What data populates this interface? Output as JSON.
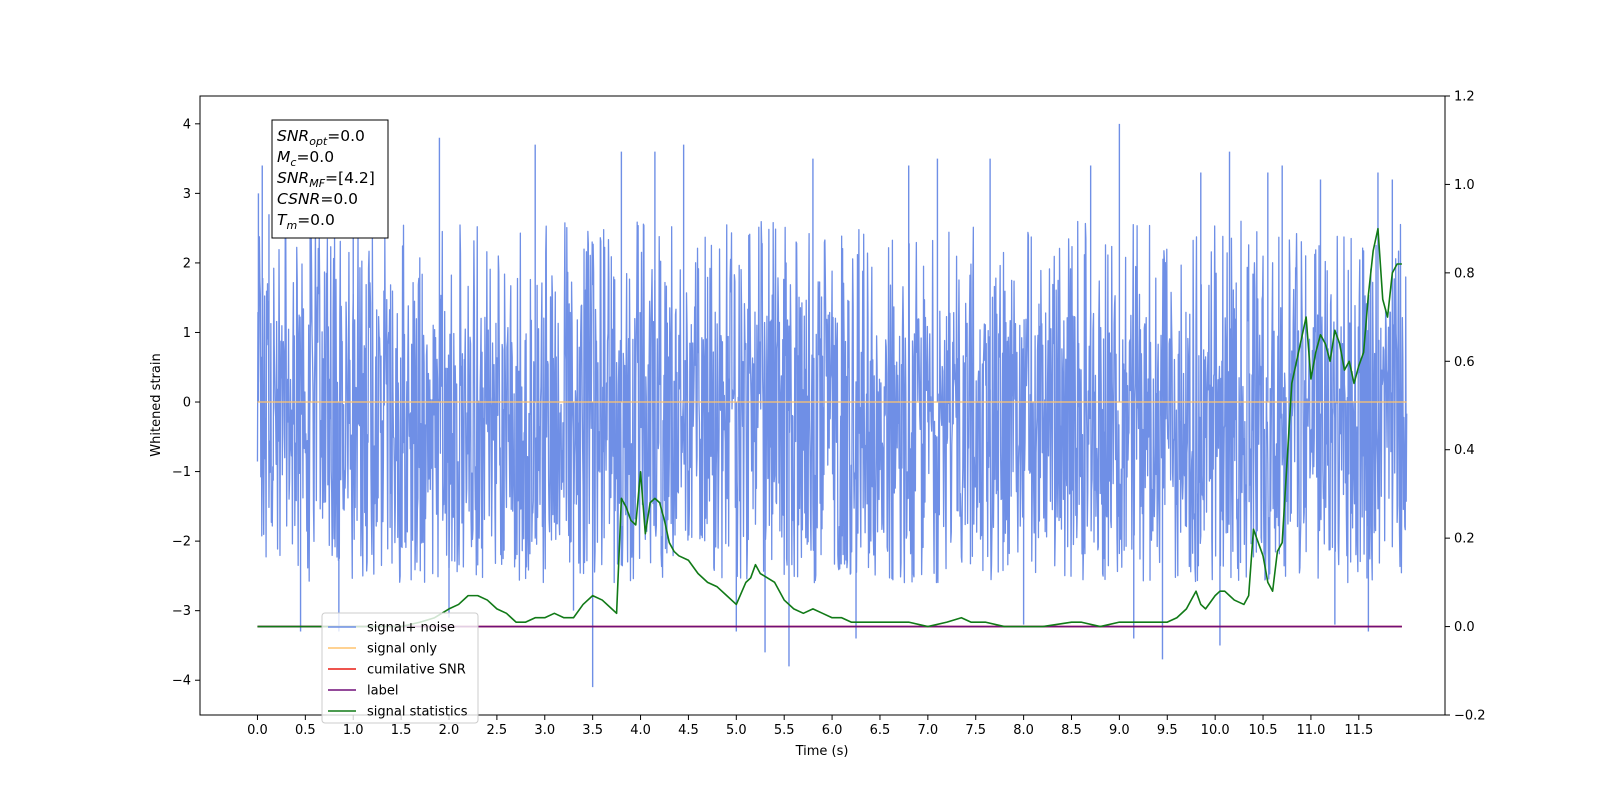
{
  "chart_data": {
    "type": "line",
    "title": "",
    "xlabel": "Time (s)",
    "ylabel": "Whitened strain",
    "y2label": "",
    "xlim": [
      -0.6,
      12.4
    ],
    "ylim": [
      -4.5,
      4.4
    ],
    "y2lim": [
      -0.2,
      1.2
    ],
    "x_ticks": [
      0.0,
      0.5,
      1.0,
      1.5,
      2.0,
      2.5,
      3.0,
      3.5,
      4.0,
      4.5,
      5.0,
      5.5,
      6.0,
      6.5,
      7.0,
      7.5,
      8.0,
      8.5,
      9.0,
      9.5,
      10.0,
      10.5,
      11.0,
      11.5
    ],
    "x_tick_labels": [
      "0.0",
      "0.5",
      "1.0",
      "1.5",
      "2.0",
      "2.5",
      "3.0",
      "3.5",
      "4.0",
      "4.5",
      "5.0",
      "5.5",
      "6.0",
      "6.5",
      "7.0",
      "7.5",
      "8.0",
      "8.5",
      "9.0",
      "9.5",
      "10.0",
      "10.5",
      "11.0",
      "11.5"
    ],
    "y_ticks": [
      -4,
      -3,
      -2,
      -1,
      0,
      1,
      2,
      3,
      4
    ],
    "y_tick_labels": [
      "−4",
      "−3",
      "−2",
      "−1",
      "0",
      "1",
      "2",
      "3",
      "4"
    ],
    "y2_ticks": [
      -0.2,
      0.0,
      0.2,
      0.4,
      0.6,
      0.8,
      1.0,
      1.2
    ],
    "y2_tick_labels": [
      "−0.2",
      "0.0",
      "0.2",
      "0.4",
      "0.6",
      "0.8",
      "1.0",
      "1.2"
    ],
    "grid": false,
    "legend_position": "lower-left",
    "annotation": [
      {
        "base": "SNR",
        "sub": "opt",
        "value": "=0.0"
      },
      {
        "base": "M",
        "sub": "c",
        "value": "=0.0"
      },
      {
        "base": "SNR",
        "sub": "MF",
        "value": "=[4.2]"
      },
      {
        "base": "CSNR",
        "sub": "",
        "value": "=0.0"
      },
      {
        "base": "T",
        "sub": "m",
        "value": "=0.0"
      }
    ],
    "series": [
      {
        "name": "signal+ noise",
        "color": "#6f8fe6",
        "axis": "left",
        "style": "noise",
        "x_range": [
          0.0,
          12.0
        ],
        "typical_band": [
          -1.8,
          1.3
        ],
        "envelope": [
          -2.6,
          2.6
        ],
        "spikes": [
          {
            "x": 0.01,
            "y": 3.0
          },
          {
            "x": 0.05,
            "y": 3.4
          },
          {
            "x": 0.12,
            "y": 2.7
          },
          {
            "x": 0.45,
            "y": -3.3
          },
          {
            "x": 0.55,
            "y": 3.2
          },
          {
            "x": 0.85,
            "y": -3.3
          },
          {
            "x": 1.0,
            "y": 3.2
          },
          {
            "x": 1.9,
            "y": 3.8
          },
          {
            "x": 2.0,
            "y": -3.1
          },
          {
            "x": 2.9,
            "y": 3.7
          },
          {
            "x": 3.3,
            "y": -3.0
          },
          {
            "x": 3.5,
            "y": -4.1
          },
          {
            "x": 3.8,
            "y": 3.6
          },
          {
            "x": 4.15,
            "y": 3.6
          },
          {
            "x": 4.45,
            "y": 3.7
          },
          {
            "x": 5.0,
            "y": -3.3
          },
          {
            "x": 5.3,
            "y": -3.6
          },
          {
            "x": 5.55,
            "y": -3.8
          },
          {
            "x": 5.8,
            "y": 3.5
          },
          {
            "x": 6.25,
            "y": -3.4
          },
          {
            "x": 6.8,
            "y": 3.4
          },
          {
            "x": 7.1,
            "y": 3.5
          },
          {
            "x": 7.65,
            "y": 3.5
          },
          {
            "x": 8.0,
            "y": -3.2
          },
          {
            "x": 8.7,
            "y": 3.4
          },
          {
            "x": 9.0,
            "y": 4.0
          },
          {
            "x": 9.15,
            "y": -3.4
          },
          {
            "x": 9.45,
            "y": -3.7
          },
          {
            "x": 9.85,
            "y": 3.3
          },
          {
            "x": 10.05,
            "y": -3.5
          },
          {
            "x": 10.15,
            "y": 3.6
          },
          {
            "x": 10.55,
            "y": 3.3
          },
          {
            "x": 10.7,
            "y": 3.4
          },
          {
            "x": 11.1,
            "y": 3.2
          },
          {
            "x": 11.25,
            "y": -3.2
          },
          {
            "x": 11.6,
            "y": -3.3
          },
          {
            "x": 11.7,
            "y": 3.3
          },
          {
            "x": 11.85,
            "y": 3.2
          }
        ]
      },
      {
        "name": "signal only",
        "color": "#ffc36e",
        "axis": "left",
        "x": [
          0.0,
          12.0
        ],
        "y": [
          0.0,
          0.0
        ]
      },
      {
        "name": "cumilative SNR",
        "color": "#e81b14",
        "axis": "right",
        "x": [
          0.0,
          11.95
        ],
        "y": [
          0.0,
          0.0
        ]
      },
      {
        "name": "label",
        "color": "#700f78",
        "axis": "right",
        "x": [
          0.0,
          11.95
        ],
        "y": [
          0.0,
          0.0
        ]
      },
      {
        "name": "signal statistics",
        "color": "#117a17",
        "axis": "right",
        "x": [
          0.0,
          0.5,
          1.0,
          1.5,
          1.7,
          1.85,
          2.0,
          2.1,
          2.2,
          2.3,
          2.4,
          2.5,
          2.6,
          2.7,
          2.8,
          2.9,
          3.0,
          3.1,
          3.2,
          3.3,
          3.4,
          3.5,
          3.6,
          3.7,
          3.75,
          3.8,
          3.85,
          3.9,
          3.95,
          4.0,
          4.05,
          4.1,
          4.15,
          4.2,
          4.25,
          4.3,
          4.35,
          4.4,
          4.5,
          4.6,
          4.7,
          4.8,
          4.9,
          5.0,
          5.1,
          5.15,
          5.2,
          5.25,
          5.4,
          5.5,
          5.6,
          5.7,
          5.8,
          5.9,
          6.0,
          6.1,
          6.2,
          6.4,
          6.6,
          6.8,
          7.0,
          7.2,
          7.35,
          7.45,
          7.6,
          7.8,
          8.0,
          8.2,
          8.5,
          8.6,
          8.8,
          9.0,
          9.2,
          9.4,
          9.5,
          9.6,
          9.7,
          9.75,
          9.8,
          9.85,
          9.9,
          10.0,
          10.05,
          10.1,
          10.15,
          10.2,
          10.3,
          10.35,
          10.4,
          10.45,
          10.5,
          10.55,
          10.6,
          10.65,
          10.7,
          10.8,
          10.85,
          10.9,
          10.95,
          11.0,
          11.05,
          11.1,
          11.15,
          11.2,
          11.25,
          11.3,
          11.35,
          11.4,
          11.45,
          11.5,
          11.55,
          11.6,
          11.65,
          11.7,
          11.75,
          11.8,
          11.85,
          11.9,
          11.95
        ],
        "y": [
          0.0,
          0.0,
          0.0,
          0.0,
          0.01,
          0.02,
          0.04,
          0.05,
          0.07,
          0.07,
          0.06,
          0.04,
          0.03,
          0.01,
          0.01,
          0.02,
          0.02,
          0.03,
          0.02,
          0.02,
          0.05,
          0.07,
          0.06,
          0.04,
          0.03,
          0.29,
          0.27,
          0.24,
          0.23,
          0.35,
          0.21,
          0.28,
          0.29,
          0.28,
          0.24,
          0.19,
          0.17,
          0.16,
          0.15,
          0.12,
          0.1,
          0.09,
          0.07,
          0.05,
          0.1,
          0.11,
          0.14,
          0.12,
          0.1,
          0.06,
          0.04,
          0.03,
          0.04,
          0.03,
          0.02,
          0.02,
          0.01,
          0.01,
          0.01,
          0.01,
          0.0,
          0.01,
          0.02,
          0.01,
          0.01,
          0.0,
          0.0,
          0.0,
          0.01,
          0.01,
          0.0,
          0.01,
          0.01,
          0.01,
          0.01,
          0.02,
          0.04,
          0.06,
          0.08,
          0.05,
          0.04,
          0.07,
          0.08,
          0.08,
          0.07,
          0.06,
          0.05,
          0.07,
          0.22,
          0.19,
          0.16,
          0.1,
          0.08,
          0.17,
          0.19,
          0.55,
          0.6,
          0.65,
          0.7,
          0.56,
          0.62,
          0.66,
          0.64,
          0.6,
          0.67,
          0.64,
          0.58,
          0.6,
          0.55,
          0.59,
          0.62,
          0.75,
          0.85,
          0.9,
          0.74,
          0.7,
          0.8,
          0.82,
          0.82
        ]
      }
    ]
  }
}
